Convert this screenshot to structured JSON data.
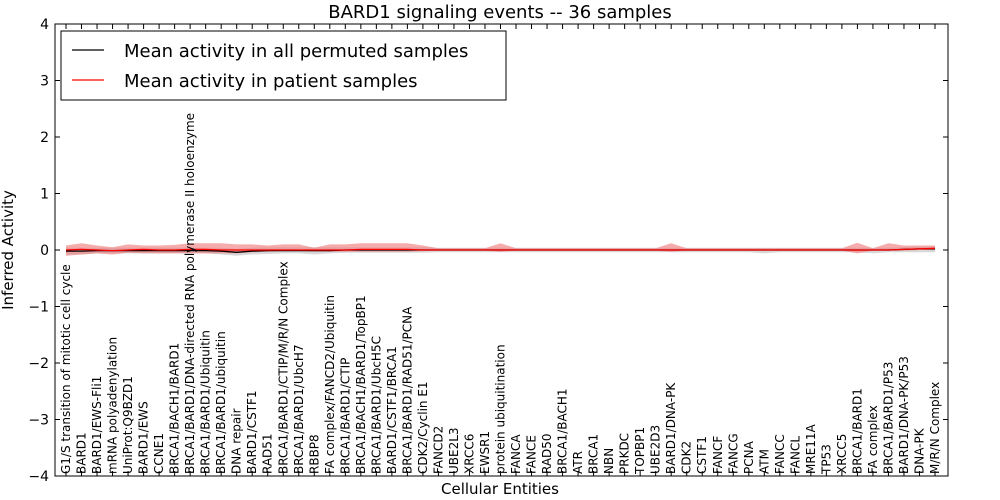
{
  "chart_data": {
    "type": "line",
    "title": "BARD1 signaling events -- 36 samples",
    "xlabel": "Cellular Entities",
    "ylabel": "Inferred Activity",
    "ylim": [
      -4,
      4
    ],
    "yticks": [
      4,
      3,
      2,
      1,
      0,
      -1,
      -2,
      -3,
      -4
    ],
    "ytick_labels": [
      "4",
      "3",
      "2",
      "1",
      "0",
      "−1",
      "−2",
      "−3",
      "−4"
    ],
    "legend_position": "top-left",
    "categories": [
      "G1/S transition of mitotic cell cycle",
      "BARD1",
      "BARD1/EWS-Fli1",
      "mRNA polyadenylation",
      "UniProt:Q9BZD1",
      "BARD1/EWS",
      "CCNE1",
      "BRCA1/BACH1/BARD1",
      "BRCA1/BARD1/DNA-directed RNA polymerase II holoenzyme",
      "BRCA1/BARD1/Ubiquitin",
      "BRCA1/BARD1/ubiquitin",
      "DNA repair",
      "BARD1/CSTF1",
      "RAD51",
      "BRCA1/BARD1/CTIP/M/R/N Complex",
      "BRCA1/BARD1/UbcH7",
      "RBBP8",
      "FA complex/FANCD2/Ubiquitin",
      "BRCA1/BARD1/CTIP",
      "BRCA1/BACH1/BARD1/TopBP1",
      "BRCA1/BARD1/UbcH5C",
      "BARD1/CSTF1/BRCA1",
      "BRCA1/BARD1/RAD51/PCNA",
      "CDK2/Cyclin E1",
      "FANCD2",
      "UBE2L3",
      "XRCC6",
      "EWSR1",
      "protein ubiquitination",
      "FANCA",
      "FANCE",
      "RAD50",
      "BRCA1/BACH1",
      "ATR",
      "BRCA1",
      "NBN",
      "PRKDC",
      "TOPBP1",
      "UBE2D3",
      "BARD1/DNA-PK",
      "CDK2",
      "CSTF1",
      "FANCF",
      "FANCG",
      "PCNA",
      "ATM",
      "FANCC",
      "FANCL",
      "MRE11A",
      "TP53",
      "XRCC5",
      "BRCA1/BARD1",
      "FA complex",
      "BRCA1/BARD1/P53",
      "BARD1/DNA-PK/P53",
      "DNA-PK",
      "M/R/N Complex"
    ],
    "series": [
      {
        "name": "Mean activity in all permuted samples",
        "color": "#000000",
        "band_color": "#c8c8c8",
        "values": [
          -0.02,
          -0.02,
          -0.01,
          -0.01,
          -0.01,
          -0.01,
          -0.01,
          -0.01,
          -0.01,
          -0.01,
          -0.02,
          -0.04,
          -0.02,
          -0.01,
          -0.01,
          -0.01,
          -0.01,
          -0.01,
          0.0,
          0.0,
          0.0,
          0.0,
          0.0,
          0.0,
          0.0,
          0.0,
          0.0,
          0.0,
          0.0,
          0.0,
          0.0,
          0.0,
          0.0,
          0.0,
          0.0,
          0.0,
          0.0,
          0.0,
          0.0,
          0.0,
          0.0,
          0.0,
          0.0,
          0.0,
          0.0,
          0.0,
          0.0,
          0.0,
          0.0,
          0.0,
          0.0,
          0.0,
          0.0,
          0.0,
          0.01,
          0.02,
          0.02
        ],
        "lower": [
          -0.08,
          -0.08,
          -0.06,
          -0.06,
          -0.06,
          -0.06,
          -0.06,
          -0.06,
          -0.06,
          -0.06,
          -0.08,
          -0.1,
          -0.08,
          -0.07,
          -0.06,
          -0.06,
          -0.08,
          -0.06,
          -0.05,
          -0.05,
          -0.05,
          -0.05,
          -0.05,
          -0.05,
          -0.04,
          -0.04,
          -0.04,
          -0.04,
          -0.04,
          -0.04,
          -0.04,
          -0.04,
          -0.04,
          -0.04,
          -0.04,
          -0.04,
          -0.04,
          -0.04,
          -0.04,
          -0.04,
          -0.04,
          -0.04,
          -0.04,
          -0.04,
          -0.04,
          -0.06,
          -0.04,
          -0.04,
          -0.04,
          -0.04,
          -0.04,
          -0.04,
          -0.06,
          -0.04,
          -0.04,
          -0.04,
          -0.04
        ],
        "upper": [
          0.04,
          0.04,
          0.04,
          0.04,
          0.04,
          0.04,
          0.04,
          0.04,
          0.04,
          0.04,
          0.04,
          0.02,
          0.04,
          0.05,
          0.05,
          0.05,
          0.05,
          0.05,
          0.05,
          0.05,
          0.05,
          0.05,
          0.05,
          0.05,
          0.04,
          0.04,
          0.04,
          0.04,
          0.04,
          0.04,
          0.04,
          0.04,
          0.04,
          0.04,
          0.04,
          0.04,
          0.04,
          0.04,
          0.04,
          0.04,
          0.04,
          0.04,
          0.04,
          0.04,
          0.04,
          0.04,
          0.04,
          0.04,
          0.04,
          0.04,
          0.04,
          0.04,
          0.04,
          0.04,
          0.05,
          0.06,
          0.06
        ]
      },
      {
        "name": "Mean activity in patient samples",
        "color": "#ff0000",
        "band_color": "#f08080",
        "values": [
          0.0,
          0.01,
          0.0,
          -0.01,
          0.0,
          0.01,
          0.0,
          0.0,
          0.01,
          0.01,
          0.0,
          0.0,
          0.0,
          0.0,
          0.0,
          0.0,
          0.0,
          0.0,
          0.0,
          0.01,
          0.01,
          0.01,
          0.01,
          0.0,
          0.0,
          0.0,
          0.0,
          0.0,
          0.0,
          0.0,
          0.0,
          0.0,
          0.0,
          0.0,
          0.0,
          0.0,
          0.0,
          0.0,
          0.0,
          0.0,
          0.0,
          0.0,
          0.0,
          0.0,
          0.0,
          0.0,
          0.0,
          0.0,
          0.0,
          0.0,
          0.0,
          0.0,
          0.0,
          0.0,
          0.01,
          0.02,
          0.03
        ],
        "lower": [
          -0.1,
          -0.08,
          -0.06,
          -0.08,
          -0.05,
          -0.06,
          -0.06,
          -0.06,
          -0.06,
          -0.06,
          -0.06,
          -0.06,
          -0.04,
          -0.03,
          -0.02,
          -0.02,
          -0.03,
          -0.03,
          -0.03,
          -0.03,
          -0.03,
          -0.03,
          -0.03,
          -0.02,
          -0.01,
          -0.01,
          -0.01,
          -0.01,
          -0.03,
          -0.01,
          -0.01,
          -0.01,
          -0.01,
          -0.01,
          -0.01,
          -0.01,
          -0.01,
          -0.01,
          -0.01,
          -0.03,
          -0.01,
          -0.01,
          -0.01,
          -0.01,
          -0.01,
          -0.01,
          -0.01,
          -0.01,
          -0.01,
          -0.01,
          -0.01,
          -0.06,
          -0.01,
          -0.01,
          -0.01,
          0.0,
          0.0
        ],
        "upper": [
          0.08,
          0.12,
          0.08,
          0.05,
          0.1,
          0.08,
          0.08,
          0.09,
          0.12,
          0.12,
          0.12,
          0.1,
          0.1,
          0.08,
          0.1,
          0.1,
          0.04,
          0.1,
          0.1,
          0.12,
          0.12,
          0.12,
          0.12,
          0.08,
          0.03,
          0.03,
          0.03,
          0.03,
          0.12,
          0.03,
          0.03,
          0.03,
          0.03,
          0.03,
          0.03,
          0.03,
          0.03,
          0.03,
          0.03,
          0.12,
          0.03,
          0.03,
          0.03,
          0.03,
          0.03,
          0.03,
          0.03,
          0.03,
          0.03,
          0.03,
          0.03,
          0.13,
          0.03,
          0.12,
          0.08,
          0.08,
          0.08
        ]
      }
    ]
  }
}
